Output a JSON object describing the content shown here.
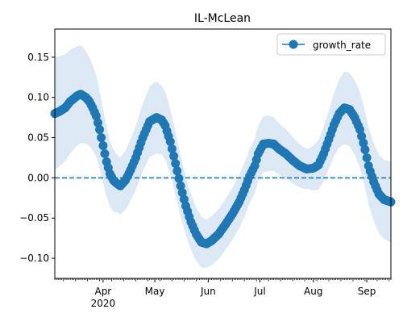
{
  "chart_data": {
    "type": "line",
    "title": "IL-McLean",
    "xlabel": "",
    "ylabel": "",
    "x_range": [
      "2020-03-04",
      "2020-09-15"
    ],
    "ylim": [
      -0.125,
      0.185
    ],
    "y_ticks": [
      -0.1,
      -0.05,
      0.0,
      0.05,
      0.1,
      0.15
    ],
    "y_tick_labels": [
      "−0.10",
      "−0.05",
      "0.00",
      "0.05",
      "0.10",
      "0.15"
    ],
    "x_ticks": [
      {
        "date": "2020-04-01",
        "label": "Apr",
        "sublabel": "2020"
      },
      {
        "date": "2020-05-01",
        "label": "May",
        "sublabel": ""
      },
      {
        "date": "2020-06-01",
        "label": "Jun",
        "sublabel": ""
      },
      {
        "date": "2020-07-01",
        "label": "Jul",
        "sublabel": ""
      },
      {
        "date": "2020-08-01",
        "label": "Aug",
        "sublabel": ""
      },
      {
        "date": "2020-09-01",
        "label": "Sep",
        "sublabel": ""
      }
    ],
    "grid": false,
    "legend": {
      "position": "top-right",
      "entries": [
        "growth_rate"
      ]
    },
    "reference_line": {
      "y": 0.0,
      "style": "dashed"
    },
    "colors": {
      "series": "#1f77b4",
      "band": "#dce8f4"
    },
    "series_anchors": {
      "name": "growth_rate",
      "points": [
        [
          "2020-03-04",
          0.08
        ],
        [
          "2020-03-07",
          0.083
        ],
        [
          "2020-03-10",
          0.087
        ],
        [
          "2020-03-13",
          0.095
        ],
        [
          "2020-03-17",
          0.102
        ],
        [
          "2020-03-19",
          0.104
        ],
        [
          "2020-03-22",
          0.1
        ],
        [
          "2020-03-24",
          0.095
        ],
        [
          "2020-03-26",
          0.087
        ],
        [
          "2020-03-28",
          0.077
        ],
        [
          "2020-03-30",
          0.06
        ],
        [
          "2020-04-01",
          0.04
        ],
        [
          "2020-04-03",
          0.02
        ],
        [
          "2020-04-05",
          0.005
        ],
        [
          "2020-04-07",
          -0.003
        ],
        [
          "2020-04-09",
          -0.007
        ],
        [
          "2020-04-11",
          -0.01
        ],
        [
          "2020-04-14",
          -0.003
        ],
        [
          "2020-04-17",
          0.01
        ],
        [
          "2020-04-20",
          0.025
        ],
        [
          "2020-04-24",
          0.05
        ],
        [
          "2020-04-28",
          0.07
        ],
        [
          "2020-05-02",
          0.075
        ],
        [
          "2020-05-05",
          0.072
        ],
        [
          "2020-05-07",
          0.065
        ],
        [
          "2020-05-10",
          0.045
        ],
        [
          "2020-05-13",
          0.018
        ],
        [
          "2020-05-16",
          -0.01
        ],
        [
          "2020-05-19",
          -0.035
        ],
        [
          "2020-05-22",
          -0.055
        ],
        [
          "2020-05-25",
          -0.07
        ],
        [
          "2020-05-28",
          -0.08
        ],
        [
          "2020-05-31",
          -0.082
        ],
        [
          "2020-06-03",
          -0.078
        ],
        [
          "2020-06-07",
          -0.07
        ],
        [
          "2020-06-11",
          -0.058
        ],
        [
          "2020-06-15",
          -0.045
        ],
        [
          "2020-06-19",
          -0.03
        ],
        [
          "2020-06-22",
          -0.015
        ],
        [
          "2020-06-25",
          0.002
        ],
        [
          "2020-06-28",
          0.015
        ],
        [
          "2020-06-30",
          0.03
        ],
        [
          "2020-07-03",
          0.042
        ],
        [
          "2020-07-06",
          0.043
        ],
        [
          "2020-07-09",
          0.042
        ],
        [
          "2020-07-12",
          0.036
        ],
        [
          "2020-07-16",
          0.03
        ],
        [
          "2020-07-20",
          0.022
        ],
        [
          "2020-07-24",
          0.015
        ],
        [
          "2020-07-28",
          0.011
        ],
        [
          "2020-08-01",
          0.012
        ],
        [
          "2020-08-04",
          0.016
        ],
        [
          "2020-08-07",
          0.03
        ],
        [
          "2020-08-10",
          0.048
        ],
        [
          "2020-08-13",
          0.066
        ],
        [
          "2020-08-16",
          0.08
        ],
        [
          "2020-08-19",
          0.087
        ],
        [
          "2020-08-22",
          0.085
        ],
        [
          "2020-08-25",
          0.075
        ],
        [
          "2020-08-28",
          0.06
        ],
        [
          "2020-08-31",
          0.035
        ],
        [
          "2020-09-02",
          0.015
        ],
        [
          "2020-09-05",
          -0.005
        ],
        [
          "2020-09-08",
          -0.02
        ],
        [
          "2020-09-11",
          -0.027
        ],
        [
          "2020-09-15",
          -0.03
        ]
      ]
    },
    "band_halfwidth_anchors": [
      [
        "2020-03-04",
        0.07
      ],
      [
        "2020-03-20",
        0.06
      ],
      [
        "2020-04-10",
        0.035
      ],
      [
        "2020-05-01",
        0.045
      ],
      [
        "2020-05-31",
        0.03
      ],
      [
        "2020-07-05",
        0.035
      ],
      [
        "2020-07-29",
        0.025
      ],
      [
        "2020-08-19",
        0.045
      ],
      [
        "2020-09-15",
        0.05
      ]
    ]
  }
}
